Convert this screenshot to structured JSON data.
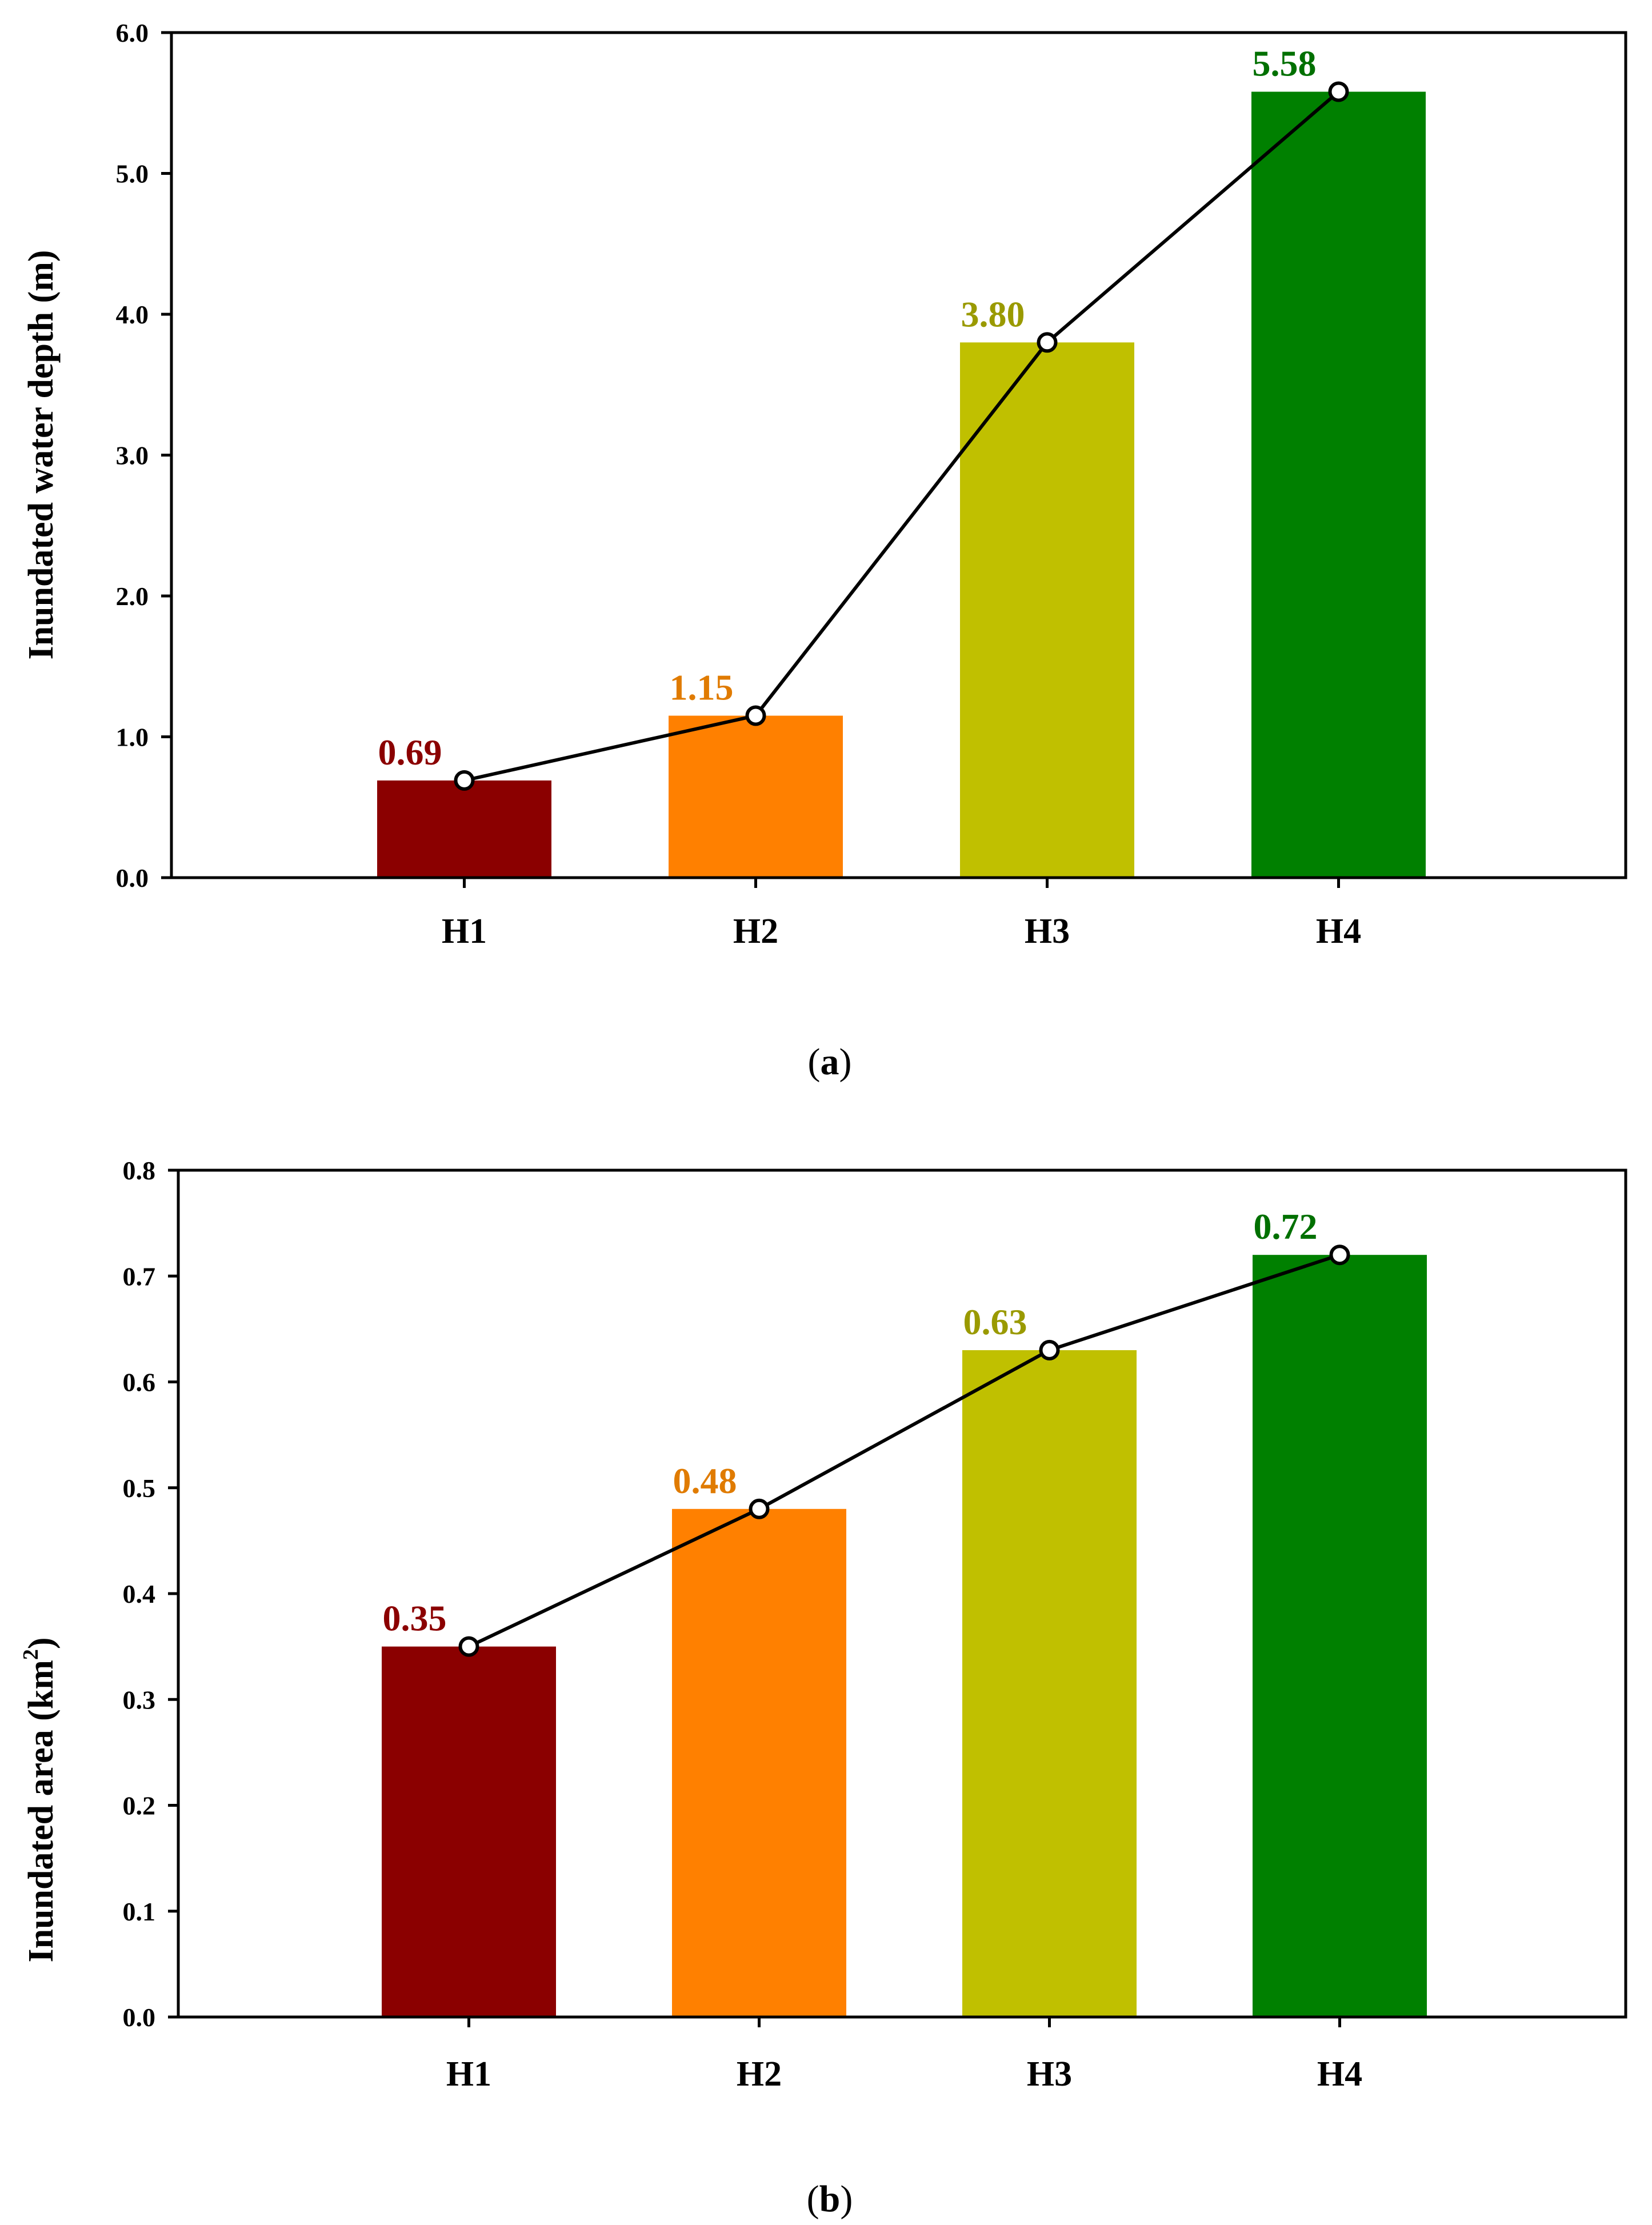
{
  "chart_data": [
    {
      "type": "bar",
      "caption": {
        "open": "(",
        "letter": "a",
        "close": ")"
      },
      "categories": [
        "H1",
        "H2",
        "H3",
        "H4"
      ],
      "values": [
        0.69,
        1.15,
        3.8,
        5.58
      ],
      "value_labels": [
        "0.69",
        "1.15",
        "3.80",
        "5.58"
      ],
      "bar_colors": [
        "#8b0000",
        "#ff8000",
        "#c0c000",
        "#008000"
      ],
      "label_colors": [
        "#8b0000",
        "#e07b00",
        "#9a9a00",
        "#007000"
      ],
      "line_overlay": true,
      "ylabel": {
        "text": "Inundated water depth (m)",
        "sup": "",
        "suffix": ""
      },
      "ylim": [
        0,
        6.0
      ],
      "yticks": [
        0.0,
        1.0,
        2.0,
        3.0,
        4.0,
        5.0,
        6.0
      ],
      "ytick_labels": [
        "0.0",
        "1.0",
        "2.0",
        "3.0",
        "4.0",
        "5.0",
        "6.0"
      ],
      "grid": false
    },
    {
      "type": "bar",
      "caption": {
        "open": "(",
        "letter": "b",
        "close": ")"
      },
      "categories": [
        "H1",
        "H2",
        "H3",
        "H4"
      ],
      "values": [
        0.35,
        0.48,
        0.63,
        0.72
      ],
      "value_labels": [
        "0.35",
        "0.48",
        "0.63",
        "0.72"
      ],
      "bar_colors": [
        "#8b0000",
        "#ff8000",
        "#c0c000",
        "#008000"
      ],
      "label_colors": [
        "#8b0000",
        "#e07b00",
        "#9a9a00",
        "#007000"
      ],
      "line_overlay": true,
      "ylabel": {
        "text": "Inundated area (km",
        "sup": "2",
        "suffix": ")"
      },
      "ylim": [
        0,
        0.8
      ],
      "yticks": [
        0.0,
        0.1,
        0.2,
        0.3,
        0.4,
        0.5,
        0.6,
        0.7,
        0.8
      ],
      "ytick_labels": [
        "0.0",
        "0.1",
        "0.2",
        "0.3",
        "0.4",
        "0.5",
        "0.6",
        "0.7",
        "0.8"
      ],
      "grid": false
    }
  ]
}
